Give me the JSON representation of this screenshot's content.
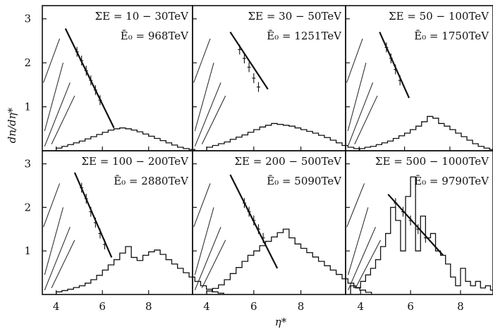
{
  "figure": {
    "ylabel": "dn/dη*",
    "xlabel": "η*"
  },
  "chart_data": [
    {
      "type": "histogram",
      "panel": "a",
      "label_energy": "ΣE = 10 − 30TeV",
      "label_e0": "Ē₀ = 968TeV",
      "xlim": [
        3.4,
        9.9
      ],
      "ylim": [
        0,
        3.3
      ],
      "xticks": [
        4,
        6,
        8
      ],
      "yticks": [
        1,
        2,
        3
      ],
      "histogram": {
        "edges_start": 4.0,
        "bin_width": 0.25,
        "values": [
          0.06,
          0.1,
          0.14,
          0.18,
          0.22,
          0.27,
          0.32,
          0.37,
          0.42,
          0.47,
          0.5,
          0.52,
          0.5,
          0.47,
          0.43,
          0.38,
          0.33,
          0.28,
          0.23,
          0.18,
          0.13,
          0.08,
          0.05,
          0.03
        ]
      },
      "fit_line": {
        "x": [
          4.4,
          6.5
        ],
        "y": [
          2.78,
          0.52
        ]
      },
      "points": [
        {
          "x": 4.9,
          "y": 2.25
        },
        {
          "x": 5.1,
          "y": 2.05
        },
        {
          "x": 5.3,
          "y": 1.82
        },
        {
          "x": 5.5,
          "y": 1.6
        },
        {
          "x": 5.7,
          "y": 1.38
        },
        {
          "x": 5.9,
          "y": 1.15
        }
      ]
    },
    {
      "type": "histogram",
      "panel": "b",
      "label_energy": "ΣE = 30 − 50TeV",
      "label_e0": "Ē₀ = 1251TeV",
      "xlim": [
        3.4,
        9.9
      ],
      "ylim": [
        0,
        3.3
      ],
      "xticks": [
        4,
        6,
        8
      ],
      "yticks": [
        1,
        2,
        3
      ],
      "histogram": {
        "edges_start": 4.0,
        "bin_width": 0.25,
        "values": [
          0.08,
          0.12,
          0.16,
          0.2,
          0.26,
          0.31,
          0.36,
          0.42,
          0.48,
          0.54,
          0.58,
          0.62,
          0.6,
          0.58,
          0.56,
          0.52,
          0.48,
          0.44,
          0.4,
          0.35,
          0.3,
          0.24,
          0.18,
          0.12,
          0.08,
          0.05
        ]
      },
      "fit_line": {
        "x": [
          5.0,
          6.6
        ],
        "y": [
          2.7,
          1.4
        ]
      },
      "points": [
        {
          "x": 5.4,
          "y": 2.3
        },
        {
          "x": 5.6,
          "y": 2.1
        },
        {
          "x": 5.8,
          "y": 1.9
        },
        {
          "x": 6.0,
          "y": 1.65
        },
        {
          "x": 6.2,
          "y": 1.45
        }
      ]
    },
    {
      "type": "histogram",
      "panel": "c",
      "label_energy": "ΣE = 50 − 100TeV",
      "label_e0": "Ē₀ = 1750TeV",
      "xlim": [
        3.4,
        9.9
      ],
      "ylim": [
        0,
        3.3
      ],
      "xticks": [
        4,
        6,
        8
      ],
      "yticks": [
        1,
        2,
        3
      ],
      "histogram": {
        "edges_start": 4.0,
        "bin_width": 0.25,
        "values": [
          0.05,
          0.08,
          0.1,
          0.14,
          0.18,
          0.22,
          0.28,
          0.34,
          0.4,
          0.48,
          0.56,
          0.66,
          0.78,
          0.74,
          0.62,
          0.56,
          0.48,
          0.4,
          0.32,
          0.24,
          0.16,
          0.1,
          0.06,
          0.03
        ]
      },
      "fit_line": {
        "x": [
          4.9,
          6.2
        ],
        "y": [
          2.7,
          1.2
        ]
      },
      "points": [
        {
          "x": 5.2,
          "y": 2.35
        },
        {
          "x": 5.4,
          "y": 2.1
        },
        {
          "x": 5.6,
          "y": 1.85
        },
        {
          "x": 5.8,
          "y": 1.6
        }
      ]
    },
    {
      "type": "histogram",
      "panel": "d",
      "label_energy": "ΣE = 100 − 200TeV",
      "label_e0": "Ē₀ = 2880TeV",
      "xlim": [
        3.4,
        9.9
      ],
      "ylim": [
        0,
        3.3
      ],
      "xticks": [
        4,
        6,
        8
      ],
      "yticks": [
        1,
        2,
        3
      ],
      "histogram": {
        "edges_start": 4.0,
        "bin_width": 0.25,
        "values": [
          0.06,
          0.09,
          0.12,
          0.16,
          0.2,
          0.26,
          0.34,
          0.44,
          0.56,
          0.68,
          0.8,
          0.95,
          1.1,
          0.85,
          0.78,
          0.9,
          0.98,
          1.02,
          0.92,
          0.8,
          0.7,
          0.6,
          0.5,
          0.4,
          0.3,
          0.2,
          0.12,
          0.06,
          0.03
        ]
      },
      "fit_line": {
        "x": [
          4.8,
          6.4
        ],
        "y": [
          2.8,
          0.85
        ]
      },
      "points": [
        {
          "x": 5.1,
          "y": 2.45
        },
        {
          "x": 5.3,
          "y": 2.2
        },
        {
          "x": 5.5,
          "y": 1.9
        },
        {
          "x": 5.7,
          "y": 1.65
        },
        {
          "x": 5.9,
          "y": 1.4
        },
        {
          "x": 6.1,
          "y": 1.15
        }
      ]
    },
    {
      "type": "histogram",
      "panel": "e",
      "label_energy": "ΣE = 200 − 500TeV",
      "label_e0": "Ē₀ = 5090TeV",
      "xlim": [
        3.4,
        9.9
      ],
      "ylim": [
        0,
        3.3
      ],
      "xticks": [
        4,
        6,
        8
      ],
      "yticks": [
        1,
        2,
        3
      ],
      "histogram": {
        "edges_start": 4.0,
        "bin_width": 0.25,
        "values": [
          0.08,
          0.14,
          0.22,
          0.34,
          0.48,
          0.62,
          0.76,
          0.9,
          1.0,
          1.12,
          1.22,
          1.32,
          1.42,
          1.5,
          1.3,
          1.16,
          1.06,
          0.96,
          0.86,
          0.76,
          0.66,
          0.56,
          0.46,
          0.36,
          0.26,
          0.16,
          0.1,
          0.05
        ]
      },
      "fit_line": {
        "x": [
          5.0,
          7.0
        ],
        "y": [
          2.75,
          0.6
        ]
      },
      "points": [
        {
          "x": 5.6,
          "y": 2.1
        },
        {
          "x": 5.8,
          "y": 1.9
        },
        {
          "x": 6.0,
          "y": 1.7
        },
        {
          "x": 6.2,
          "y": 1.5
        },
        {
          "x": 6.4,
          "y": 1.3
        }
      ]
    },
    {
      "type": "histogram",
      "panel": "f",
      "label_energy": "ΣE = 500 − 1000TeV",
      "label_e0": "Ē₀ = 9790TeV",
      "xlim": [
        3.4,
        9.3
      ],
      "ylim": [
        0,
        3.3
      ],
      "xticks": [
        4,
        6,
        8
      ],
      "yticks": [
        1,
        2,
        3
      ],
      "histogram": {
        "edges_start": 3.6,
        "bin_width": 0.2,
        "values": [
          0.2,
          0.15,
          0.3,
          0.45,
          0.6,
          0.8,
          1.1,
          1.4,
          2.0,
          1.7,
          1.0,
          2.25,
          2.7,
          1.0,
          1.8,
          1.3,
          1.4,
          1.0,
          0.9,
          0.7,
          0.4,
          0.2,
          0.6,
          0.3,
          0.2,
          0.3,
          0.15,
          0.2,
          0.1
        ]
      },
      "fit_line": {
        "x": [
          5.1,
          7.3
        ],
        "y": [
          2.3,
          0.9
        ]
      },
      "points": [
        {
          "x": 5.4,
          "y": 2.1
        },
        {
          "x": 5.7,
          "y": 1.9
        },
        {
          "x": 6.0,
          "y": 1.7
        },
        {
          "x": 6.3,
          "y": 1.5
        },
        {
          "x": 6.6,
          "y": 1.3
        }
      ]
    }
  ]
}
